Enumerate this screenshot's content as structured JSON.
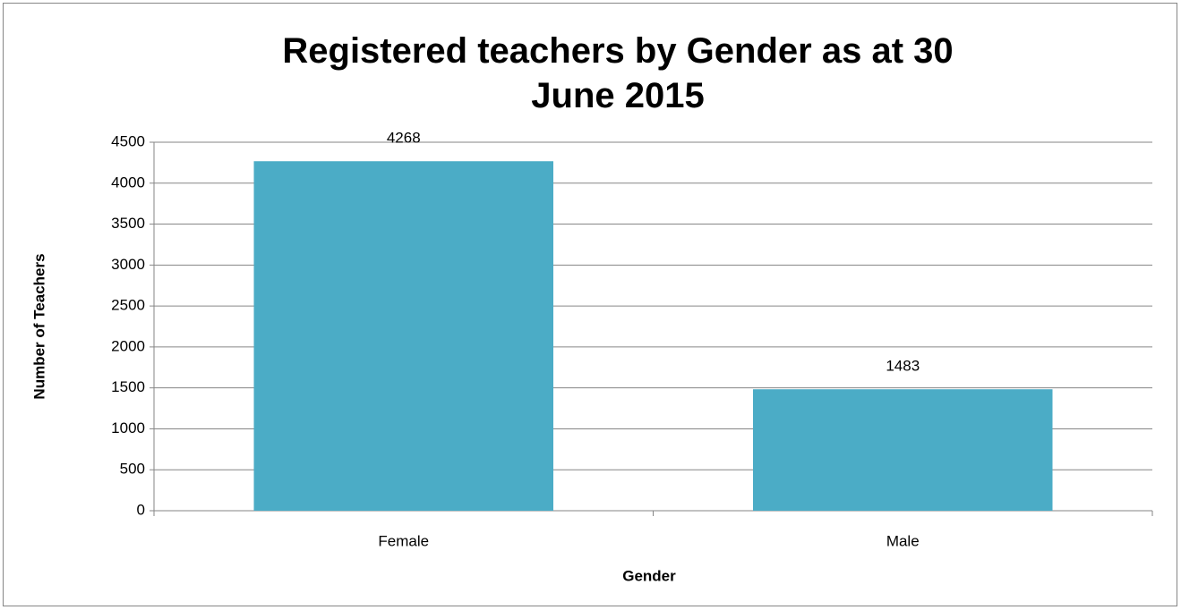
{
  "chart_data": {
    "type": "bar",
    "title": "Registered teachers by Gender as at 30 June 2015",
    "x_label": "Gender",
    "y_label": "Number of Teachers",
    "categories": [
      "Female",
      "Male"
    ],
    "values": [
      4268,
      1483
    ],
    "color": "#4bacc6",
    "ylim": [
      0,
      4500
    ],
    "yticks": [
      0,
      500,
      1000,
      1500,
      2000,
      2500,
      3000,
      3500,
      4000,
      4500
    ],
    "grid": true
  }
}
